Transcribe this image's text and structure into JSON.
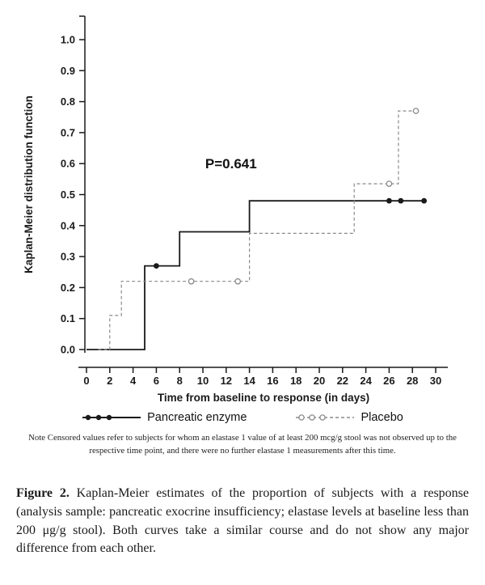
{
  "chart_data": {
    "type": "line",
    "subtype": "kaplan-meier-step",
    "title": "",
    "xlabel": "Time from baseline to response (in days)",
    "ylabel": "Kaplan-Meier distribution function",
    "xlim": [
      0,
      30
    ],
    "ylim": [
      0.0,
      1.0
    ],
    "grid": false,
    "legend_position": "bottom",
    "xticks": [
      0,
      2,
      4,
      6,
      8,
      10,
      12,
      14,
      16,
      18,
      20,
      22,
      24,
      26,
      28,
      30
    ],
    "yticks": [
      0.0,
      0.1,
      0.2,
      0.3,
      0.4,
      0.5,
      0.6,
      0.7,
      0.8,
      0.9,
      1.0
    ],
    "annotation": {
      "text": "P=0.641",
      "x": 10.2,
      "y": 0.585
    },
    "series": [
      {
        "name": "Pancreatic enzyme",
        "style": "solid",
        "color": "#1a1a1a",
        "marker": "filled-circle",
        "points": [
          [
            0,
            0
          ],
          [
            5,
            0
          ],
          [
            5,
            0.27
          ],
          [
            8,
            0.27
          ],
          [
            8,
            0.38
          ],
          [
            14,
            0.38
          ],
          [
            14,
            0.48
          ],
          [
            29,
            0.48
          ]
        ],
        "censored": [
          [
            6,
            0.27
          ],
          [
            26,
            0.48
          ],
          [
            27,
            0.48
          ],
          [
            29,
            0.48
          ]
        ]
      },
      {
        "name": "Placebo",
        "style": "dashed",
        "color": "#8a8a8a",
        "marker": "open-circle",
        "points": [
          [
            1,
            0
          ],
          [
            2,
            0
          ],
          [
            2,
            0.11
          ],
          [
            3,
            0.11
          ],
          [
            3,
            0.22
          ],
          [
            14,
            0.22
          ],
          [
            14,
            0.375
          ],
          [
            23,
            0.375
          ],
          [
            23,
            0.535
          ],
          [
            26.8,
            0.535
          ],
          [
            26.8,
            0.77
          ],
          [
            28.3,
            0.77
          ]
        ],
        "censored": [
          [
            9,
            0.22
          ],
          [
            13,
            0.22
          ],
          [
            26,
            0.535
          ],
          [
            28.3,
            0.77
          ]
        ]
      }
    ],
    "legend": [
      {
        "label": "Pancreatic enzyme",
        "style": "solid",
        "marker": "filled-circle"
      },
      {
        "label": "Placebo",
        "style": "dashed",
        "marker": "open-circle"
      }
    ]
  },
  "note": "Note Censored values refer to subjects for whom an elastase 1 value of at least 200 mcg/g stool was not observed up to the respective time point, and there were no further elastase 1 measurements after this time.",
  "caption": {
    "label": "Figure 2.",
    "text": "Kaplan-Meier estimates of the proportion of subjects with a response (analysis sample: pancreatic exocrine insufficiency; elastase levels at baseline less than 200 μg/g stool). Both curves take a similar course and do not show any major difference from each other."
  }
}
